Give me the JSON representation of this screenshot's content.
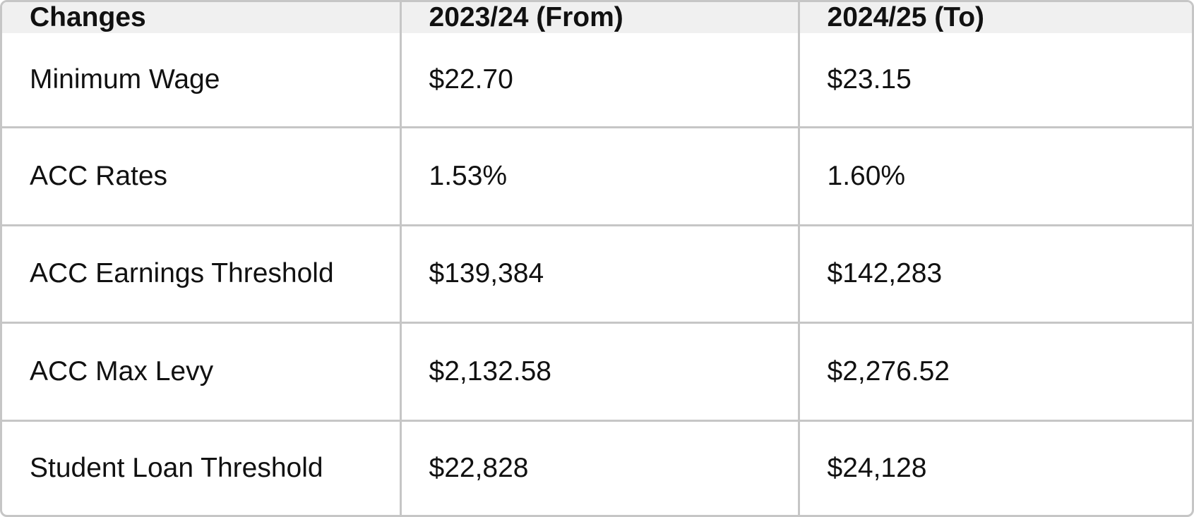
{
  "table": {
    "headers": [
      "Changes",
      "2023/24 (From)",
      "2024/25 (To)"
    ],
    "rows": [
      [
        "Minimum Wage",
        "$22.70",
        "$23.15"
      ],
      [
        "ACC Rates",
        "1.53%",
        "1.60%"
      ],
      [
        "ACC Earnings Threshold",
        "$139,384",
        "$142,283"
      ],
      [
        "ACC Max Levy",
        "$2,132.58",
        "$2,276.52"
      ],
      [
        "Student Loan Threshold",
        "$22,828",
        "$24,128"
      ]
    ]
  }
}
